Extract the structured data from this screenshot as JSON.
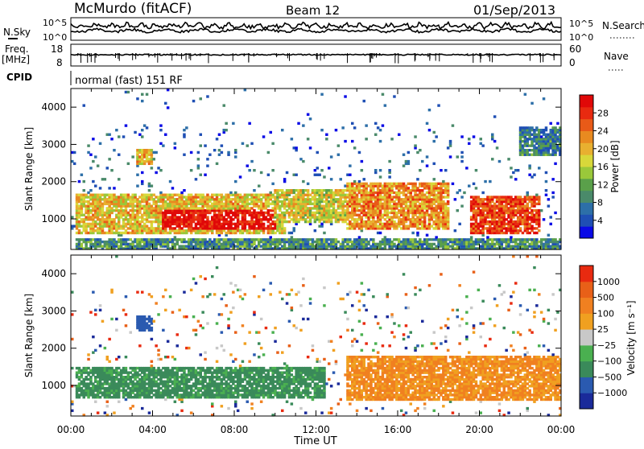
{
  "header": {
    "station": "McMurdo (fitACF)",
    "beam": "Beam 12",
    "date": "01/Sep/2013"
  },
  "noise_panel": {
    "left_label": "N.Sky",
    "right_label": "N.Search",
    "left_ticks": [
      "10^5",
      "10^0"
    ],
    "right_ticks": [
      "10^5",
      "10^0"
    ]
  },
  "freq_panel": {
    "left_label_1": "Freq.",
    "left_label_2": "[MHz]",
    "left_ticks": [
      "18",
      "8"
    ],
    "right_label": "Nave",
    "right_ticks": [
      "60",
      "0"
    ]
  },
  "cpid": {
    "label": "CPID",
    "value": "normal (fast) 151 RF"
  },
  "time_axis": {
    "label": "Time UT",
    "ticks": [
      "00:00",
      "04:00",
      "08:00",
      "12:00",
      "16:00",
      "20:00",
      "00:00"
    ]
  },
  "chart_data": [
    {
      "type": "heatmap",
      "name": "power",
      "ylabel": "Slant Range [km]",
      "yticks": [
        1000,
        2000,
        3000,
        4000
      ],
      "ylim": [
        180,
        4500
      ],
      "xlim_hours": [
        0,
        24
      ],
      "colorbar": {
        "label": "Power [dB]",
        "ticks": [
          "4",
          "8",
          "12",
          "16",
          "20",
          "24",
          "28"
        ],
        "colors": [
          "#0a0ae6",
          "#1f4fb4",
          "#2d6fa8",
          "#4a8a6a",
          "#5aa04a",
          "#9ac83a",
          "#d8d83a",
          "#e8b030",
          "#e88a20",
          "#e85a18",
          "#e82a10",
          "#e00808"
        ]
      },
      "regions": [
        {
          "t0": 0.2,
          "t1": 10.5,
          "r0": 600,
          "r1": 1700,
          "level": 0.6
        },
        {
          "t0": 4.5,
          "t1": 10.0,
          "r0": 750,
          "r1": 1250,
          "level": 0.95
        },
        {
          "t0": 10.0,
          "t1": 13.5,
          "r0": 900,
          "r1": 1800,
          "level": 0.55
        },
        {
          "t0": 13.5,
          "t1": 18.5,
          "r0": 700,
          "r1": 2000,
          "level": 0.7
        },
        {
          "t0": 19.5,
          "t1": 23.0,
          "r0": 600,
          "r1": 1600,
          "level": 0.85
        },
        {
          "t0": 0.2,
          "t1": 24.0,
          "r0": 200,
          "r1": 500,
          "level": 0.3
        },
        {
          "t0": 3.2,
          "t1": 4.0,
          "r0": 2450,
          "r1": 2850,
          "level": 0.6
        },
        {
          "t0": 22.0,
          "t1": 24.0,
          "r0": 2700,
          "r1": 3500,
          "level": 0.25
        }
      ]
    },
    {
      "type": "heatmap",
      "name": "velocity",
      "ylabel": "Slant Range [km]",
      "yticks": [
        1000,
        2000,
        3000,
        4000
      ],
      "ylim": [
        180,
        4500
      ],
      "xlim_hours": [
        0,
        24
      ],
      "colorbar": {
        "label": "Velocity [m s⁻¹]",
        "ticks": [
          "1000",
          "500",
          "100",
          "25",
          "−25",
          "−100",
          "−500",
          "−1000"
        ],
        "colors": [
          "#1a2a9a",
          "#2a5ab0",
          "#3a8a5a",
          "#4ab050",
          "#c8c8c8",
          "#f0a020",
          "#f08020",
          "#e86018",
          "#e82a10"
        ]
      },
      "regions": [
        {
          "t0": 0.2,
          "t1": 12.5,
          "r0": 650,
          "r1": 1500,
          "side": "green"
        },
        {
          "t0": 13.5,
          "t1": 24.0,
          "r0": 600,
          "r1": 1800,
          "side": "orange"
        },
        {
          "t0": 3.2,
          "t1": 4.0,
          "r0": 2450,
          "r1": 2850,
          "side": "blue"
        }
      ]
    }
  ]
}
